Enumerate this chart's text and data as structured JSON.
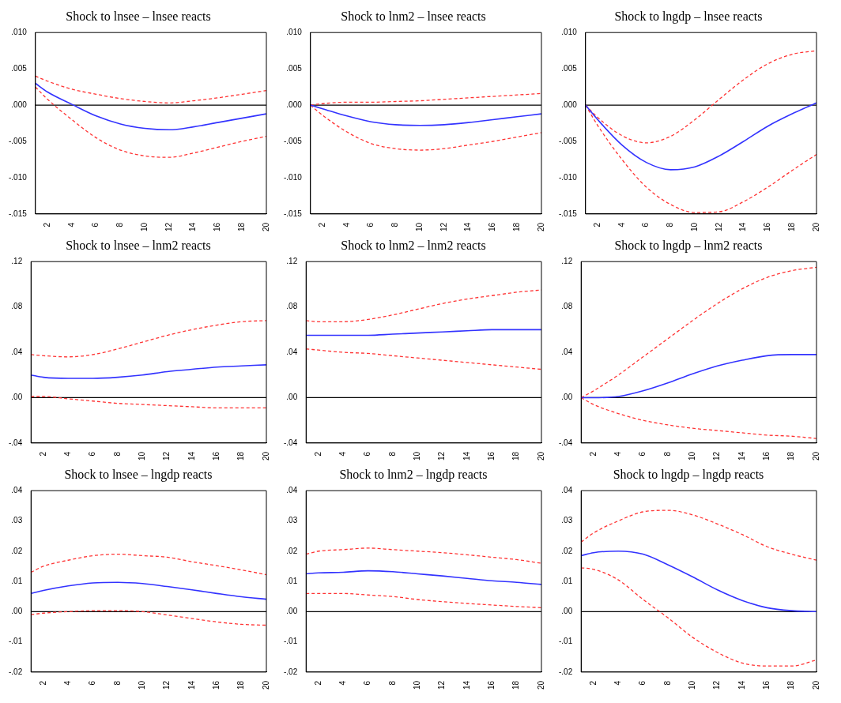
{
  "chart_data": [
    {
      "type": "line",
      "title": "Shock to lnsee – lnsee reacts",
      "x": [
        1,
        2,
        4,
        6,
        8,
        10,
        12,
        14,
        16,
        18,
        20
      ],
      "xlim": [
        1,
        20
      ],
      "xticks": [
        2,
        4,
        6,
        8,
        10,
        12,
        14,
        16,
        18,
        20
      ],
      "ylim": [
        -0.015,
        0.01
      ],
      "yticks": [
        {
          "value": -0.015,
          "label": "-.015"
        },
        {
          "value": -0.01,
          "label": "-.010"
        },
        {
          "value": -0.005,
          "label": "-.005"
        },
        {
          "value": 0,
          "label": ".000"
        },
        {
          "value": 0.005,
          "label": ".005"
        },
        {
          "value": 0.01,
          "label": ".010"
        }
      ],
      "grid": false,
      "legend": false,
      "marker": "none",
      "ref_lines": [
        {
          "axis": "y",
          "value": 0,
          "color": "#000000"
        }
      ],
      "series": [
        {
          "color": "#3333ff",
          "line_style": "solid",
          "values": [
            0.003,
            0.0018,
            0.0001,
            -0.0015,
            -0.0026,
            -0.0032,
            -0.0034,
            -0.003,
            -0.0024,
            -0.0018,
            -0.0012
          ]
        },
        {
          "color": "#ff3333",
          "line_style": "dashed",
          "values": [
            0.004,
            0.0033,
            0.0022,
            0.0015,
            0.0009,
            0.0005,
            0.0003,
            0.0006,
            0.001,
            0.0015,
            0.002
          ]
        },
        {
          "color": "#ff3333",
          "line_style": "dashed",
          "values": [
            0.0025,
            0.0008,
            -0.002,
            -0.0045,
            -0.0062,
            -0.007,
            -0.0072,
            -0.0066,
            -0.0058,
            -0.005,
            -0.0043
          ]
        }
      ]
    },
    {
      "type": "line",
      "title": "Shock to lnm2 – lnsee reacts",
      "x": [
        1,
        2,
        4,
        6,
        8,
        10,
        12,
        14,
        16,
        18,
        20
      ],
      "xlim": [
        1,
        20
      ],
      "xticks": [
        2,
        4,
        6,
        8,
        10,
        12,
        14,
        16,
        18,
        20
      ],
      "ylim": [
        -0.015,
        0.01
      ],
      "yticks": [
        {
          "value": -0.015,
          "label": "-.015"
        },
        {
          "value": -0.01,
          "label": "-.010"
        },
        {
          "value": -0.005,
          "label": "-.005"
        },
        {
          "value": 0,
          "label": ".000"
        },
        {
          "value": 0.005,
          "label": ".005"
        },
        {
          "value": 0.01,
          "label": ".010"
        }
      ],
      "grid": false,
      "legend": false,
      "marker": "none",
      "ref_lines": [
        {
          "axis": "y",
          "value": 0,
          "color": "#000000"
        }
      ],
      "series": [
        {
          "color": "#3333ff",
          "line_style": "solid",
          "values": [
            0,
            -0.0005,
            -0.0015,
            -0.0023,
            -0.0027,
            -0.0028,
            -0.0027,
            -0.0024,
            -0.002,
            -0.0016,
            -0.0012
          ]
        },
        {
          "color": "#ff3333",
          "line_style": "dashed",
          "values": [
            0,
            0.0002,
            0.0004,
            0.0004,
            0.0005,
            0.0006,
            0.0008,
            0.001,
            0.0012,
            0.0014,
            0.0016
          ]
        },
        {
          "color": "#ff3333",
          "line_style": "dashed",
          "values": [
            0,
            -0.0014,
            -0.0037,
            -0.0053,
            -0.006,
            -0.0062,
            -0.006,
            -0.0055,
            -0.005,
            -0.0044,
            -0.0038
          ]
        }
      ]
    },
    {
      "type": "line",
      "title": "Shock to lngdp – lnsee reacts",
      "x": [
        1,
        2,
        4,
        6,
        8,
        10,
        12,
        14,
        16,
        18,
        20
      ],
      "xlim": [
        1,
        20
      ],
      "xticks": [
        2,
        4,
        6,
        8,
        10,
        12,
        14,
        16,
        18,
        20
      ],
      "ylim": [
        -0.015,
        0.01
      ],
      "yticks": [
        {
          "value": -0.015,
          "label": "-.015"
        },
        {
          "value": -0.01,
          "label": "-.010"
        },
        {
          "value": -0.005,
          "label": "-.005"
        },
        {
          "value": 0,
          "label": ".000"
        },
        {
          "value": 0.005,
          "label": ".005"
        },
        {
          "value": 0.01,
          "label": ".010"
        }
      ],
      "grid": false,
      "legend": false,
      "marker": "none",
      "ref_lines": [
        {
          "axis": "y",
          "value": 0,
          "color": "#000000"
        }
      ],
      "series": [
        {
          "color": "#3333ff",
          "line_style": "solid",
          "values": [
            0,
            -0.002,
            -0.0055,
            -0.0079,
            -0.0089,
            -0.0085,
            -0.007,
            -0.005,
            -0.0029,
            -0.0012,
            0.0003
          ]
        },
        {
          "color": "#ff3333",
          "line_style": "dashed",
          "values": [
            0,
            -0.0017,
            -0.0042,
            -0.0052,
            -0.0043,
            -0.002,
            0.0008,
            0.0035,
            0.0057,
            0.007,
            0.0075
          ]
        },
        {
          "color": "#ff3333",
          "line_style": "dashed",
          "values": [
            0,
            -0.0028,
            -0.0075,
            -0.0113,
            -0.0137,
            -0.0148,
            -0.0147,
            -0.0133,
            -0.0113,
            -0.009,
            -0.0068
          ]
        }
      ]
    },
    {
      "type": "line",
      "title": "Shock to lnsee – lnm2 reacts",
      "x": [
        1,
        2,
        4,
        6,
        8,
        10,
        12,
        14,
        16,
        18,
        20
      ],
      "xlim": [
        1,
        20
      ],
      "xticks": [
        2,
        4,
        6,
        8,
        10,
        12,
        14,
        16,
        18,
        20
      ],
      "ylim": [
        -0.04,
        0.12
      ],
      "yticks": [
        {
          "value": -0.04,
          "label": "-.04"
        },
        {
          "value": 0,
          "label": ".00"
        },
        {
          "value": 0.04,
          "label": ".04"
        },
        {
          "value": 0.08,
          "label": ".08"
        },
        {
          "value": 0.12,
          "label": ".12"
        }
      ],
      "grid": false,
      "legend": false,
      "marker": "none",
      "ref_lines": [
        {
          "axis": "y",
          "value": 0,
          "color": "#000000"
        }
      ],
      "series": [
        {
          "color": "#3333ff",
          "line_style": "solid",
          "values": [
            0.02,
            0.018,
            0.017,
            0.017,
            0.018,
            0.02,
            0.023,
            0.025,
            0.027,
            0.028,
            0.029
          ]
        },
        {
          "color": "#ff3333",
          "line_style": "dashed",
          "values": [
            0.038,
            0.037,
            0.036,
            0.038,
            0.043,
            0.049,
            0.055,
            0.06,
            0.064,
            0.067,
            0.068
          ]
        },
        {
          "color": "#ff3333",
          "line_style": "dashed",
          "values": [
            0.001,
            0.001,
            -0.001,
            -0.003,
            -0.005,
            -0.006,
            -0.007,
            -0.008,
            -0.009,
            -0.009,
            -0.009
          ]
        }
      ]
    },
    {
      "type": "line",
      "title": "Shock to lnm2 – lnm2 reacts",
      "x": [
        1,
        2,
        4,
        6,
        8,
        10,
        12,
        14,
        16,
        18,
        20
      ],
      "xlim": [
        1,
        20
      ],
      "xticks": [
        2,
        4,
        6,
        8,
        10,
        12,
        14,
        16,
        18,
        20
      ],
      "ylim": [
        -0.04,
        0.12
      ],
      "yticks": [
        {
          "value": -0.04,
          "label": "-.04"
        },
        {
          "value": 0,
          "label": ".00"
        },
        {
          "value": 0.04,
          "label": ".04"
        },
        {
          "value": 0.08,
          "label": ".08"
        },
        {
          "value": 0.12,
          "label": ".12"
        }
      ],
      "grid": false,
      "legend": false,
      "marker": "none",
      "ref_lines": [
        {
          "axis": "y",
          "value": 0,
          "color": "#000000"
        }
      ],
      "series": [
        {
          "color": "#3333ff",
          "line_style": "solid",
          "values": [
            0.055,
            0.055,
            0.055,
            0.055,
            0.056,
            0.057,
            0.058,
            0.059,
            0.06,
            0.06,
            0.06
          ]
        },
        {
          "color": "#ff3333",
          "line_style": "dashed",
          "values": [
            0.068,
            0.067,
            0.067,
            0.069,
            0.073,
            0.078,
            0.083,
            0.087,
            0.09,
            0.093,
            0.095
          ]
        },
        {
          "color": "#ff3333",
          "line_style": "dashed",
          "values": [
            0.043,
            0.042,
            0.04,
            0.039,
            0.037,
            0.035,
            0.033,
            0.031,
            0.029,
            0.027,
            0.025
          ]
        }
      ]
    },
    {
      "type": "line",
      "title": "Shock to lngdp – lnm2 reacts",
      "x": [
        1,
        2,
        4,
        6,
        8,
        10,
        12,
        14,
        16,
        18,
        20
      ],
      "xlim": [
        1,
        20
      ],
      "xticks": [
        2,
        4,
        6,
        8,
        10,
        12,
        14,
        16,
        18,
        20
      ],
      "ylim": [
        -0.04,
        0.12
      ],
      "yticks": [
        {
          "value": -0.04,
          "label": "-.04"
        },
        {
          "value": 0,
          "label": ".00"
        },
        {
          "value": 0.04,
          "label": ".04"
        },
        {
          "value": 0.08,
          "label": ".08"
        },
        {
          "value": 0.12,
          "label": ".12"
        }
      ],
      "grid": false,
      "legend": false,
      "marker": "none",
      "ref_lines": [
        {
          "axis": "y",
          "value": 0,
          "color": "#000000"
        }
      ],
      "series": [
        {
          "color": "#3333ff",
          "line_style": "solid",
          "values": [
            0,
            0,
            0.001,
            0.006,
            0.013,
            0.021,
            0.028,
            0.033,
            0.037,
            0.038,
            0.038
          ]
        },
        {
          "color": "#ff3333",
          "line_style": "dashed",
          "values": [
            0,
            0.006,
            0.02,
            0.036,
            0.052,
            0.068,
            0.083,
            0.096,
            0.106,
            0.112,
            0.115
          ]
        },
        {
          "color": "#ff3333",
          "line_style": "dashed",
          "values": [
            0,
            -0.006,
            -0.014,
            -0.02,
            -0.024,
            -0.027,
            -0.029,
            -0.031,
            -0.033,
            -0.034,
            -0.036
          ]
        }
      ]
    },
    {
      "type": "line",
      "title": "Shock to lnsee – lngdp reacts",
      "x": [
        1,
        2,
        4,
        6,
        8,
        10,
        12,
        14,
        16,
        18,
        20
      ],
      "xlim": [
        1,
        20
      ],
      "xticks": [
        2,
        4,
        6,
        8,
        10,
        12,
        14,
        16,
        18,
        20
      ],
      "ylim": [
        -0.02,
        0.04
      ],
      "yticks": [
        {
          "value": -0.02,
          "label": "-.02"
        },
        {
          "value": -0.01,
          "label": "-.01"
        },
        {
          "value": 0,
          "label": ".00"
        },
        {
          "value": 0.01,
          "label": ".01"
        },
        {
          "value": 0.02,
          "label": ".02"
        },
        {
          "value": 0.03,
          "label": ".03"
        },
        {
          "value": 0.04,
          "label": ".04"
        }
      ],
      "grid": false,
      "legend": false,
      "marker": "none",
      "ref_lines": [
        {
          "axis": "y",
          "value": 0,
          "color": "#000000"
        }
      ],
      "series": [
        {
          "color": "#3333ff",
          "line_style": "solid",
          "values": [
            0.006,
            0.007,
            0.0085,
            0.0095,
            0.0097,
            0.0093,
            0.0083,
            0.0072,
            0.006,
            0.0049,
            0.0041
          ]
        },
        {
          "color": "#ff3333",
          "line_style": "dashed",
          "values": [
            0.013,
            0.015,
            0.017,
            0.0185,
            0.019,
            0.0185,
            0.018,
            0.0165,
            0.0152,
            0.0138,
            0.0122
          ]
        },
        {
          "color": "#ff3333",
          "line_style": "dashed",
          "values": [
            -0.001,
            -0.0005,
            0,
            0.0003,
            0.0003,
            0,
            -0.0011,
            -0.0023,
            -0.0034,
            -0.0042,
            -0.0045
          ]
        }
      ]
    },
    {
      "type": "line",
      "title": "Shock to lnm2 – lngdp reacts",
      "x": [
        1,
        2,
        4,
        6,
        8,
        10,
        12,
        14,
        16,
        18,
        20
      ],
      "xlim": [
        1,
        20
      ],
      "xticks": [
        2,
        4,
        6,
        8,
        10,
        12,
        14,
        16,
        18,
        20
      ],
      "ylim": [
        -0.02,
        0.04
      ],
      "yticks": [
        {
          "value": -0.02,
          "label": "-.02"
        },
        {
          "value": -0.01,
          "label": "-.01"
        },
        {
          "value": 0,
          "label": ".00"
        },
        {
          "value": 0.01,
          "label": ".01"
        },
        {
          "value": 0.02,
          "label": ".02"
        },
        {
          "value": 0.03,
          "label": ".03"
        },
        {
          "value": 0.04,
          "label": ".04"
        }
      ],
      "grid": false,
      "legend": false,
      "marker": "none",
      "ref_lines": [
        {
          "axis": "y",
          "value": 0,
          "color": "#000000"
        }
      ],
      "series": [
        {
          "color": "#3333ff",
          "line_style": "solid",
          "values": [
            0.0125,
            0.0128,
            0.013,
            0.0135,
            0.0132,
            0.0125,
            0.0118,
            0.011,
            0.0102,
            0.0097,
            0.009
          ]
        },
        {
          "color": "#ff3333",
          "line_style": "dashed",
          "values": [
            0.019,
            0.02,
            0.0205,
            0.021,
            0.0205,
            0.02,
            0.0195,
            0.0188,
            0.018,
            0.0172,
            0.016
          ]
        },
        {
          "color": "#ff3333",
          "line_style": "dashed",
          "values": [
            0.006,
            0.006,
            0.006,
            0.0055,
            0.005,
            0.004,
            0.0033,
            0.0027,
            0.0022,
            0.0017,
            0.0013
          ]
        }
      ]
    },
    {
      "type": "line",
      "title": "Shock to lngdp – lngdp reacts",
      "x": [
        1,
        2,
        4,
        6,
        8,
        10,
        12,
        14,
        16,
        18,
        20
      ],
      "xlim": [
        1,
        20
      ],
      "xticks": [
        2,
        4,
        6,
        8,
        10,
        12,
        14,
        16,
        18,
        20
      ],
      "ylim": [
        -0.02,
        0.04
      ],
      "yticks": [
        {
          "value": -0.02,
          "label": "-.02"
        },
        {
          "value": -0.01,
          "label": "-.01"
        },
        {
          "value": 0,
          "label": ".00"
        },
        {
          "value": 0.01,
          "label": ".01"
        },
        {
          "value": 0.02,
          "label": ".02"
        },
        {
          "value": 0.03,
          "label": ".03"
        },
        {
          "value": 0.04,
          "label": ".04"
        }
      ],
      "grid": false,
      "legend": false,
      "marker": "none",
      "ref_lines": [
        {
          "axis": "y",
          "value": 0,
          "color": "#000000"
        }
      ],
      "series": [
        {
          "color": "#3333ff",
          "line_style": "solid",
          "values": [
            0.0185,
            0.0195,
            0.02,
            0.019,
            0.0155,
            0.0115,
            0.0072,
            0.0037,
            0.0013,
            0.0003,
            0
          ]
        },
        {
          "color": "#ff3333",
          "line_style": "dashed",
          "values": [
            0.023,
            0.026,
            0.03,
            0.033,
            0.0335,
            0.032,
            0.029,
            0.0255,
            0.0215,
            0.019,
            0.017
          ]
        },
        {
          "color": "#ff3333",
          "line_style": "dashed",
          "values": [
            0.0145,
            0.014,
            0.0105,
            0.004,
            -0.002,
            -0.0085,
            -0.0135,
            -0.017,
            -0.018,
            -0.018,
            -0.016
          ]
        }
      ]
    }
  ]
}
